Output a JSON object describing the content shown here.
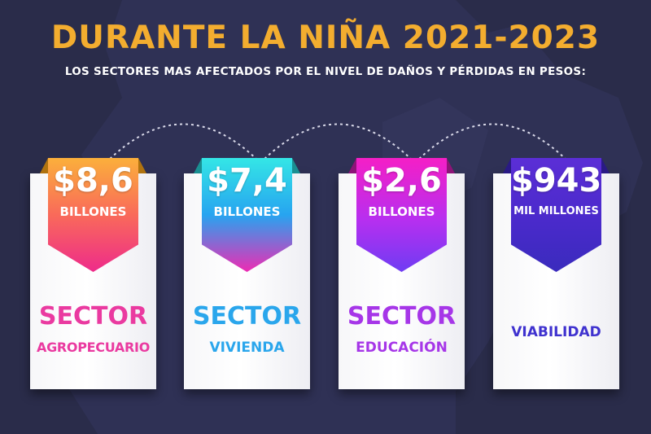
{
  "title": "DURANTE LA NIÑA 2021-2023",
  "subtitle": "LOS SECTORES MAS AFECTADOS POR EL NIVEL DE DAÑOS Y PÉRDIDAS EN PESOS:",
  "colors": {
    "background": "#2a2c4a",
    "title": "#f3ad2f",
    "sector_agro": "#ea3aa0",
    "sector_vivienda": "#2aa6ec",
    "sector_educacion": "#a636e8",
    "sector_viabilidad": "#3f32cf"
  },
  "cards": [
    {
      "amount": "$8,6",
      "unit": "BILLONES",
      "line1": "SECTOR",
      "line2": "AGROPECUARIO"
    },
    {
      "amount": "$7,4",
      "unit": "BILLONES",
      "line1": "SECTOR",
      "line2": "VIVIENDA"
    },
    {
      "amount": "$2,6",
      "unit": "BILLONES",
      "line1": "SECTOR",
      "line2": "EDUCACIÓN"
    },
    {
      "amount": "$943",
      "unit": "MIL MILLONES",
      "line1": "",
      "line2": "VIABILIDAD"
    }
  ]
}
